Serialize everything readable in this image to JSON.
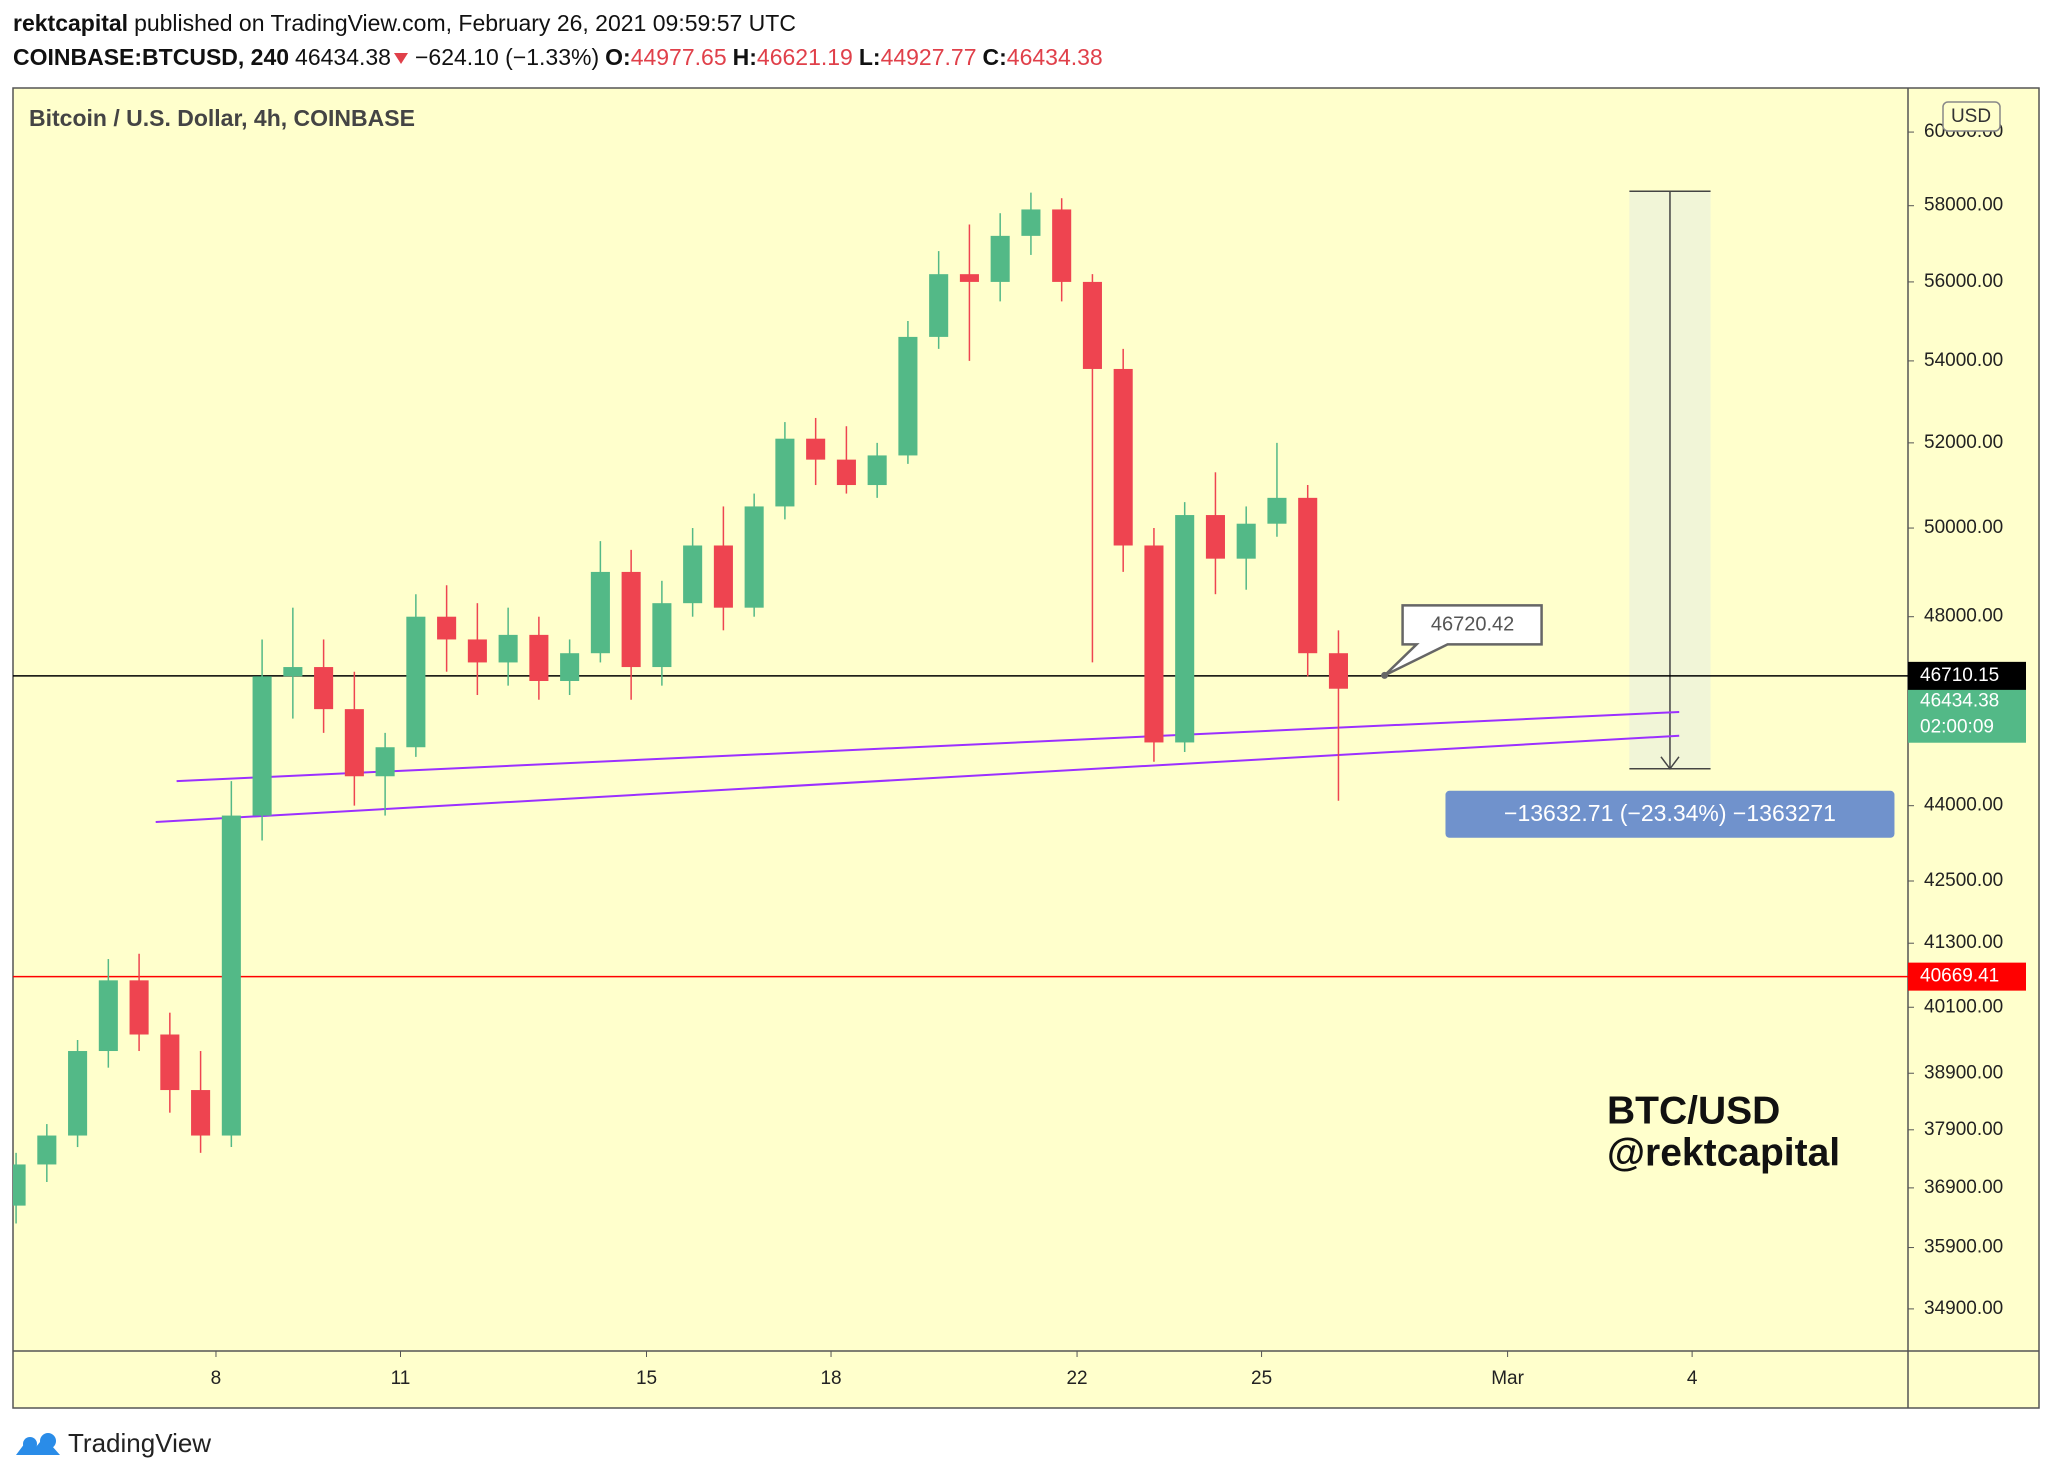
{
  "header": {
    "publisher": "rektcapital",
    "published": "published on TradingView.com, February 26, 2021 09:59:57 UTC",
    "symbol": "COINBASE:BTCUSD, 240",
    "last": "46434.38",
    "change": "−624.10 (−1.33%)",
    "ohlc": [
      {
        "label": "O:",
        "value": "44977.65"
      },
      {
        "label": "H:",
        "value": "46621.19"
      },
      {
        "label": "L:",
        "value": "44927.77"
      },
      {
        "label": "C:",
        "value": "46434.38"
      }
    ]
  },
  "chart_data": {
    "type": "candlestick",
    "title": "Bitcoin / U.S. Dollar, 4h, COINBASE",
    "currency": "USD",
    "log_scale": true,
    "grid": false,
    "up_color": "#53b987",
    "down_color": "#ee4450",
    "xlim": [
      4.7,
      35.51
    ],
    "ylim": [
      34230,
      61230
    ],
    "xticks": [
      8,
      11,
      15,
      18,
      22,
      25,
      {
        "value": 29,
        "label": "Mar"
      },
      {
        "value": 32,
        "label": "4"
      }
    ],
    "yticks": [
      {
        "value": 60000,
        "label": "60000.00"
      },
      {
        "value": 58000,
        "label": "58000.00"
      },
      {
        "value": 56000,
        "label": "56000.00"
      },
      {
        "value": 54000,
        "label": "54000.00"
      },
      {
        "value": 52000,
        "label": "52000.00"
      },
      {
        "value": 50000,
        "label": "50000.00"
      },
      {
        "value": 48000,
        "label": "48000.00"
      },
      {
        "value": 44000,
        "label": "44000.00"
      },
      {
        "value": 42500,
        "label": "42500.00"
      },
      {
        "value": 41300,
        "label": "41300.00"
      },
      {
        "value": 40100,
        "label": "40100.00"
      },
      {
        "value": 38900,
        "label": "38900.00"
      },
      {
        "value": 37900,
        "label": "37900.00"
      },
      {
        "value": 36900,
        "label": "36900.00"
      },
      {
        "value": 35900,
        "label": "35900.00"
      },
      {
        "value": 34900,
        "label": "34900.00"
      }
    ],
    "x": [
      4.75,
      5.25,
      5.75,
      6.25,
      6.75,
      7.25,
      7.75,
      8.25,
      8.75,
      9.25,
      9.75,
      10.25,
      10.75,
      11.25,
      11.75,
      12.25,
      12.75,
      13.25,
      13.75,
      14.25,
      14.75,
      15.25,
      15.75,
      16.25,
      16.75,
      17.25,
      17.75,
      18.25,
      18.75,
      19.25,
      19.75,
      20.25,
      20.75,
      21.25,
      21.75,
      22.25,
      22.75,
      23.25,
      23.75,
      24.25,
      24.75,
      25.25,
      25.75,
      26.25
    ],
    "open": [
      36600,
      37300,
      37800,
      39300,
      40600,
      39600,
      38600,
      37800,
      43800,
      46700,
      46900,
      46000,
      44600,
      45200,
      48000,
      47500,
      47000,
      47600,
      46600,
      47200,
      49000,
      46900,
      48300,
      49600,
      48200,
      50500,
      52100,
      51600,
      51000,
      51700,
      54600,
      56200,
      56000,
      57200,
      57900,
      56000,
      53800,
      49600,
      45300,
      50300,
      49300,
      50100,
      50700,
      47200
    ],
    "high": [
      37500,
      38000,
      39500,
      41000,
      41100,
      40000,
      39300,
      44500,
      47500,
      48200,
      47500,
      46800,
      45500,
      48500,
      48700,
      48300,
      48200,
      48000,
      47500,
      49700,
      49500,
      48800,
      50000,
      50500,
      50800,
      52500,
      52600,
      52400,
      52000,
      55000,
      56800,
      57500,
      57800,
      58350,
      58200,
      56200,
      54300,
      50000,
      50600,
      51300,
      50500,
      52000,
      51000,
      47700
    ],
    "low": [
      36300,
      37000,
      37600,
      39000,
      39300,
      38200,
      37500,
      37600,
      43300,
      45800,
      45500,
      44000,
      43800,
      45000,
      46800,
      46300,
      46500,
      46200,
      46300,
      47000,
      46200,
      46500,
      48000,
      47700,
      48000,
      50200,
      51000,
      50800,
      50700,
      51500,
      54300,
      54000,
      55500,
      56700,
      55500,
      47000,
      49000,
      44900,
      45100,
      48500,
      48600,
      49800,
      46700,
      44100
    ],
    "close": [
      37300,
      37800,
      39300,
      40600,
      39600,
      38600,
      37800,
      43800,
      46700,
      46900,
      46000,
      44600,
      45200,
      48000,
      47500,
      47000,
      47600,
      46600,
      47200,
      49000,
      46900,
      48300,
      49600,
      48200,
      50500,
      52100,
      51600,
      51000,
      51700,
      54600,
      56200,
      56000,
      57200,
      57900,
      56000,
      53800,
      49600,
      45300,
      50300,
      49300,
      50100,
      50700,
      47200,
      46434.38
    ],
    "price_lines": [
      {
        "value": 46434.38,
        "color": "#53b987",
        "countdown": "02:00:09",
        "line": false
      },
      {
        "value": 46710.15,
        "color": "#000000",
        "line": true
      },
      {
        "value": 40669.41,
        "color": "#ff0000",
        "line": true
      }
    ],
    "trend_lines": [
      {
        "color": "#9b30ff",
        "x": [
          7.36,
          31.79
        ],
        "y": [
          44500,
          45940
        ]
      },
      {
        "color": "#9b30ff",
        "x": [
          7.02,
          31.79
        ],
        "y": [
          43670,
          45440
        ]
      }
    ],
    "callout": {
      "x": 27.0,
      "value": 46720.42
    },
    "measure": {
      "x": [
        30.98,
        32.3
      ],
      "y": [
        58386.21,
        44753.5
      ],
      "label": "−13632.71 (−23.34%) −1363271"
    },
    "watermark": [
      "BTC/USD",
      "@rektcapital"
    ]
  },
  "footer": {
    "brand": "TradingView"
  }
}
